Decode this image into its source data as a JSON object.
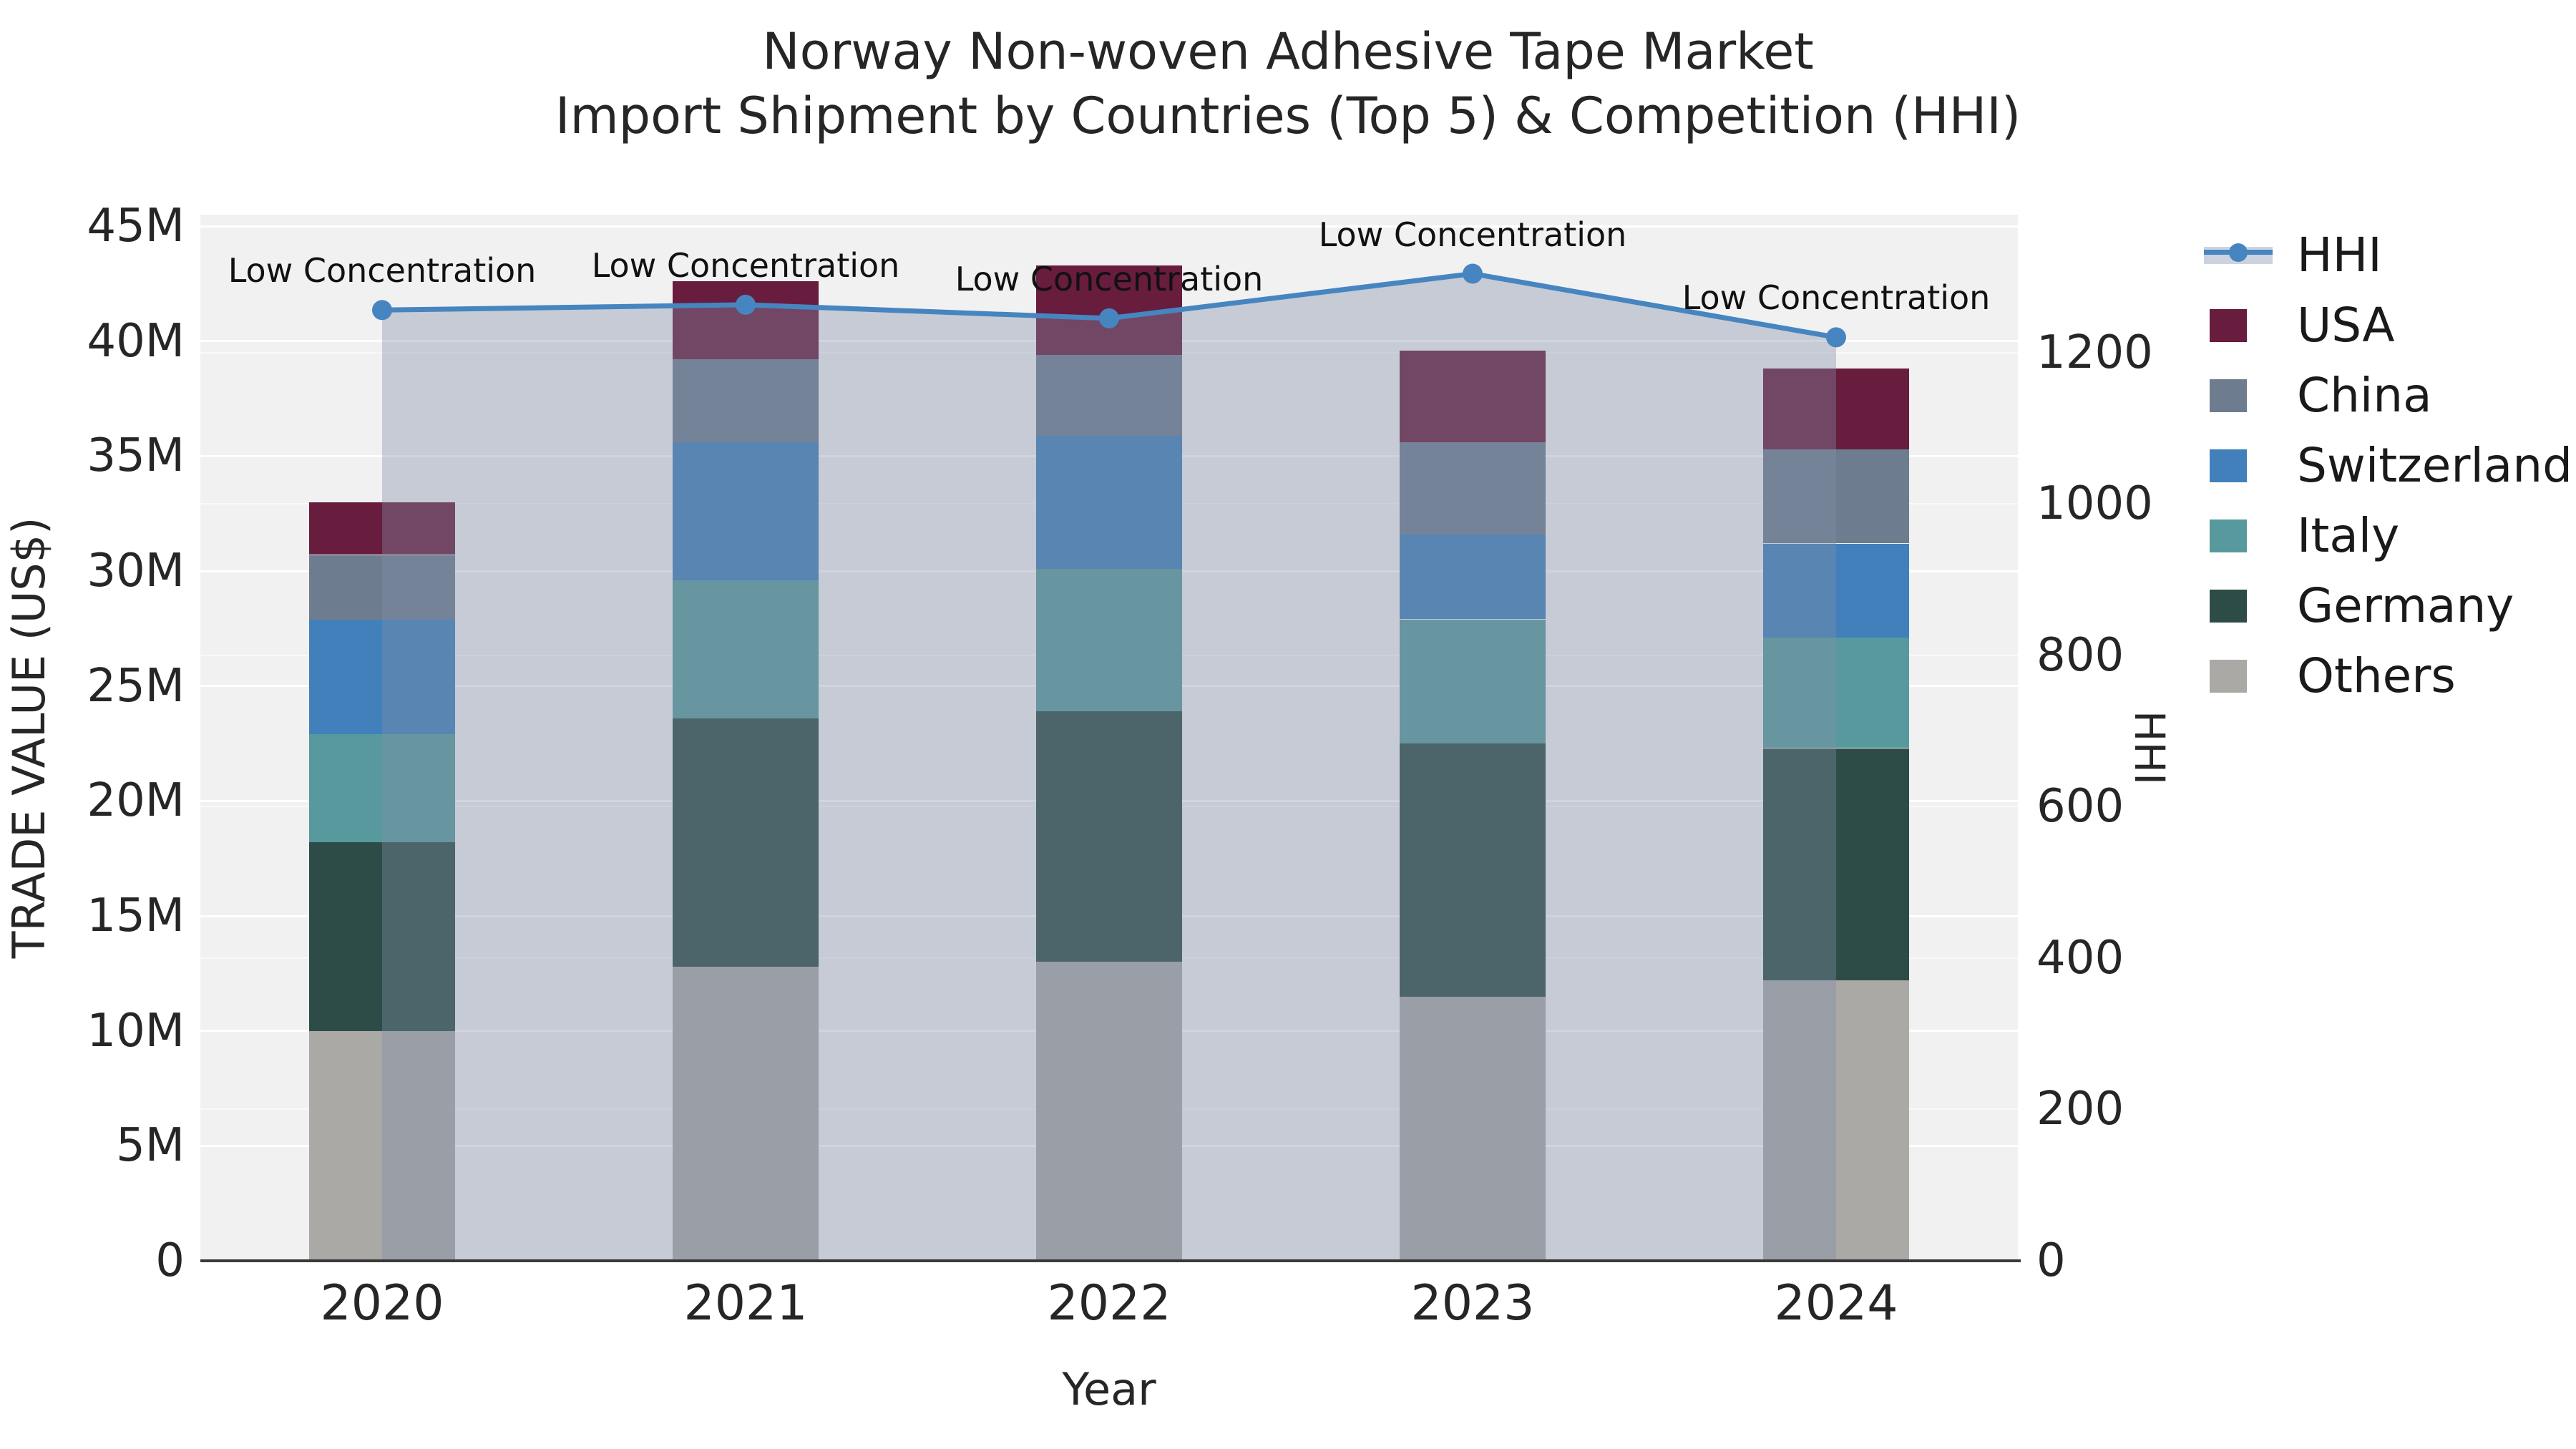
{
  "title": {
    "line1": "Norway Non-woven Adhesive Tape Market",
    "line2": "Import Shipment by Countries (Top 5) & Competition (HHI)"
  },
  "chart_data": {
    "type": "bar",
    "subtype": "stacked-bar-with-line",
    "categories": [
      "2020",
      "2021",
      "2022",
      "2023",
      "2024"
    ],
    "stack_order_bottom_to_top": [
      "Others",
      "Germany",
      "Italy",
      "Switzerland",
      "China",
      "USA"
    ],
    "series": [
      {
        "name": "USA",
        "color": "#681c3e",
        "values": [
          2.3,
          3.4,
          3.9,
          4.0,
          3.5
        ]
      },
      {
        "name": "China",
        "color": "#6d7c8e",
        "values": [
          2.8,
          3.6,
          3.5,
          4.0,
          4.1
        ]
      },
      {
        "name": "Switzerland",
        "color": "#4180bb",
        "values": [
          5.0,
          6.0,
          5.8,
          3.7,
          4.1
        ]
      },
      {
        "name": "Italy",
        "color": "#57999d",
        "values": [
          4.7,
          6.0,
          6.2,
          5.4,
          4.8
        ]
      },
      {
        "name": "Germany",
        "color": "#2d4c48",
        "values": [
          8.2,
          10.8,
          10.9,
          11.0,
          10.1
        ]
      },
      {
        "name": "Others",
        "color": "#aaa9a6",
        "values": [
          10.0,
          12.8,
          13.0,
          11.5,
          12.2
        ]
      }
    ],
    "bar_totals_millions": [
      33.0,
      42.6,
      43.3,
      39.6,
      38.8
    ],
    "line_series": {
      "name": "HHI",
      "color": "#4685c0",
      "area_fill": "rgba(130,142,165,0.38)",
      "values": [
        1256,
        1263,
        1245,
        1304,
        1220
      ],
      "annotations": [
        "Low Concentration",
        "Low Concentration",
        "Low Concentration",
        "Low Concentration",
        "Low Concentration"
      ]
    },
    "xlabel": "Year",
    "ylabel_left": "TRADE VALUE (US$)",
    "ylabel_right": "HHI",
    "left_axis": {
      "unit": "millions USD",
      "range": [
        0,
        45.5
      ],
      "ticks": [
        {
          "label": "0",
          "value": 0
        },
        {
          "label": "5M",
          "value": 5
        },
        {
          "label": "10M",
          "value": 10
        },
        {
          "label": "15M",
          "value": 15
        },
        {
          "label": "20M",
          "value": 20
        },
        {
          "label": "25M",
          "value": 25
        },
        {
          "label": "30M",
          "value": 30
        },
        {
          "label": "35M",
          "value": 35
        },
        {
          "label": "40M",
          "value": 40
        },
        {
          "label": "45M",
          "value": 45
        }
      ]
    },
    "right_axis": {
      "unit": "HHI index",
      "range": [
        0,
        1382
      ],
      "ticks": [
        {
          "label": "0",
          "value": 0
        },
        {
          "label": "200",
          "value": 200
        },
        {
          "label": "400",
          "value": 400
        },
        {
          "label": "600",
          "value": 600
        },
        {
          "label": "800",
          "value": 800
        },
        {
          "label": "1000",
          "value": 1000
        },
        {
          "label": "1200",
          "value": 1200
        }
      ]
    },
    "grid": true,
    "legend_position": "upper right, outside plot"
  },
  "legend": {
    "entries": [
      {
        "label": "HHI",
        "type": "line",
        "color": "#4685c0",
        "band_color": "#ccd3de"
      },
      {
        "label": "USA",
        "type": "patch",
        "color": "#681c3e"
      },
      {
        "label": "China",
        "type": "patch",
        "color": "#6d7c8e"
      },
      {
        "label": "Switzerland",
        "type": "patch",
        "color": "#4180bb"
      },
      {
        "label": "Italy",
        "type": "patch",
        "color": "#57999d"
      },
      {
        "label": "Germany",
        "type": "patch",
        "color": "#2d4c48"
      },
      {
        "label": "Others",
        "type": "patch",
        "color": "#aaa9a6"
      }
    ]
  },
  "colors": {
    "plot_background": "#f1f1f2",
    "figure_background": "#ffffff",
    "gridline": "#ffffff",
    "spine": "#3a3a3a",
    "text": "#262626"
  }
}
